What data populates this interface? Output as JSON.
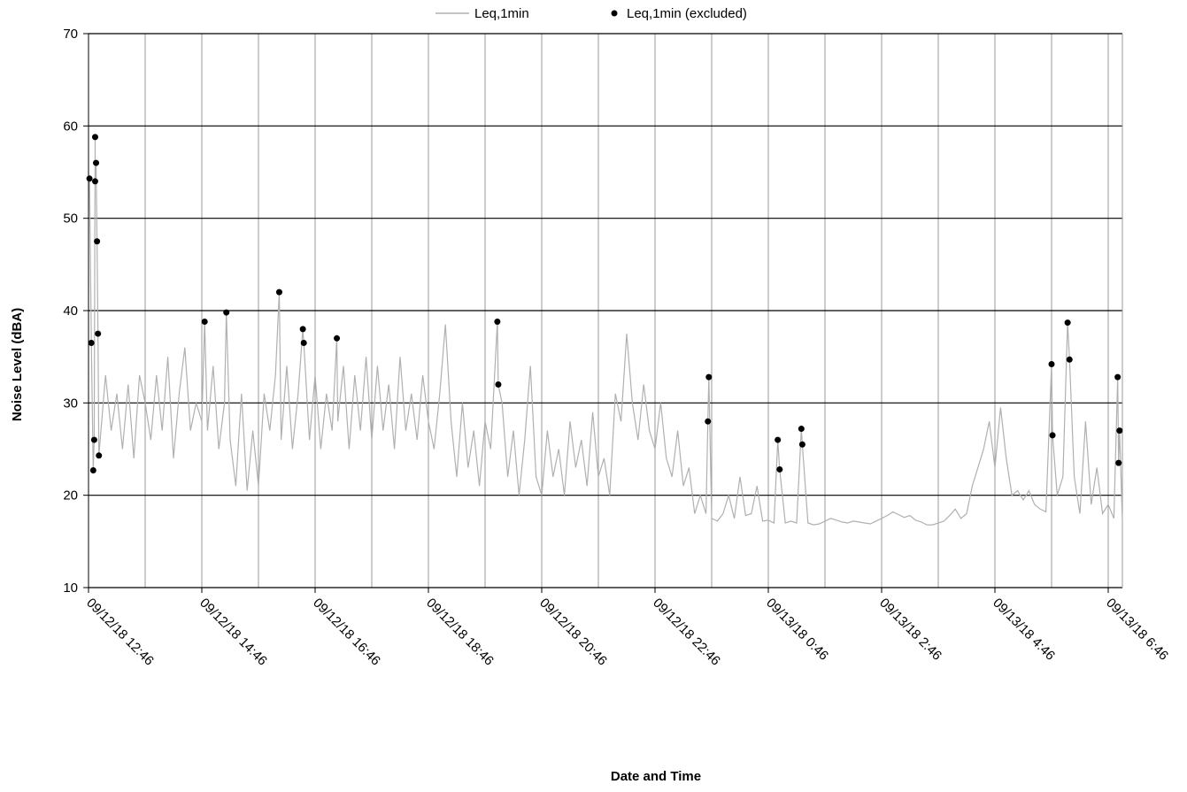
{
  "chart_data": {
    "type": "line",
    "ylabel": "Noise Level (dBA)",
    "xlabel": "Date and Time",
    "ylim": [
      10,
      70
    ],
    "yticks": [
      10,
      20,
      30,
      40,
      50,
      60,
      70
    ],
    "xlim": [
      "09/12/18 12:46",
      "09/13/18 7:01"
    ],
    "xticks": [
      "09/12/18 12:46",
      "09/12/18 14:46",
      "09/12/18 16:46",
      "09/12/18 18:46",
      "09/12/18 20:46",
      "09/12/18 22:46",
      "09/13/18 0:46",
      "09/13/18 2:46",
      "09/13/18 4:46",
      "09/13/18 6:46"
    ],
    "xgrid_minor": [
      "09/12/18 13:46",
      "09/12/18 15:46",
      "09/12/18 17:46",
      "09/12/18 19:46",
      "09/12/18 21:46",
      "09/12/18 23:46",
      "09/13/18 1:46",
      "09/13/18 3:46",
      "09/13/18 5:46"
    ],
    "grid": true,
    "legend": "top",
    "series": [
      {
        "name": "Leq,1min",
        "color": "#b0b0b0",
        "type": "line",
        "x": [
          "09/12/18 12:46",
          "09/12/18 12:47",
          "09/12/18 12:49",
          "09/12/18 12:51",
          "09/12/18 12:52",
          "09/12/18 12:53",
          "09/12/18 12:53",
          "09/12/18 12:54",
          "09/12/18 12:55",
          "09/12/18 12:56",
          "09/12/18 12:57",
          "09/12/18 13:04",
          "09/12/18 13:10",
          "09/12/18 13:16",
          "09/12/18 13:22",
          "09/12/18 13:28",
          "09/12/18 13:34",
          "09/12/18 13:40",
          "09/12/18 13:46",
          "09/12/18 13:52",
          "09/12/18 13:58",
          "09/12/18 14:04",
          "09/12/18 14:10",
          "09/12/18 14:16",
          "09/12/18 14:22",
          "09/12/18 14:28",
          "09/12/18 14:34",
          "09/12/18 14:40",
          "09/12/18 14:46",
          "09/12/18 14:49",
          "09/12/18 14:52",
          "09/12/18 14:58",
          "09/12/18 15:04",
          "09/12/18 15:10",
          "09/12/18 15:12",
          "09/12/18 15:16",
          "09/12/18 15:22",
          "09/12/18 15:28",
          "09/12/18 15:34",
          "09/12/18 15:40",
          "09/12/18 15:46",
          "09/12/18 15:52",
          "09/12/18 15:58",
          "09/12/18 16:04",
          "09/12/18 16:08",
          "09/12/18 16:10",
          "09/12/18 16:16",
          "09/12/18 16:22",
          "09/12/18 16:28",
          "09/12/18 16:33",
          "09/12/18 16:34",
          "09/12/18 16:40",
          "09/12/18 16:46",
          "09/12/18 16:52",
          "09/12/18 16:58",
          "09/12/18 17:04",
          "09/12/18 17:09",
          "09/12/18 17:10",
          "09/12/18 17:16",
          "09/12/18 17:22",
          "09/12/18 17:28",
          "09/12/18 17:34",
          "09/12/18 17:40",
          "09/12/18 17:46",
          "09/12/18 17:52",
          "09/12/18 17:58",
          "09/12/18 18:04",
          "09/12/18 18:10",
          "09/12/18 18:16",
          "09/12/18 18:22",
          "09/12/18 18:28",
          "09/12/18 18:34",
          "09/12/18 18:40",
          "09/12/18 18:46",
          "09/12/18 18:52",
          "09/12/18 18:58",
          "09/12/18 19:04",
          "09/12/18 19:10",
          "09/12/18 19:16",
          "09/12/18 19:22",
          "09/12/18 19:28",
          "09/12/18 19:34",
          "09/12/18 19:40",
          "09/12/18 19:46",
          "09/12/18 19:52",
          "09/12/18 19:59",
          "09/12/18 20:00",
          "09/12/18 20:04",
          "09/12/18 20:10",
          "09/12/18 20:16",
          "09/12/18 20:22",
          "09/12/18 20:28",
          "09/12/18 20:34",
          "09/12/18 20:40",
          "09/12/18 20:46",
          "09/12/18 20:52",
          "09/12/18 20:58",
          "09/12/18 21:04",
          "09/12/18 21:10",
          "09/12/18 21:16",
          "09/12/18 21:22",
          "09/12/18 21:28",
          "09/12/18 21:34",
          "09/12/18 21:40",
          "09/12/18 21:46",
          "09/12/18 21:52",
          "09/12/18 21:58",
          "09/12/18 22:04",
          "09/12/18 22:10",
          "09/12/18 22:16",
          "09/12/18 22:22",
          "09/12/18 22:28",
          "09/12/18 22:34",
          "09/12/18 22:40",
          "09/12/18 22:46",
          "09/12/18 22:52",
          "09/12/18 22:58",
          "09/12/18 23:04",
          "09/12/18 23:10",
          "09/12/18 23:16",
          "09/12/18 23:22",
          "09/12/18 23:28",
          "09/12/18 23:34",
          "09/12/18 23:40",
          "09/12/18 23:42",
          "09/12/18 23:43",
          "09/12/18 23:46",
          "09/12/18 23:52",
          "09/12/18 23:58",
          "09/13/18 0:04",
          "09/13/18 0:10",
          "09/13/18 0:16",
          "09/13/18 0:22",
          "09/13/18 0:28",
          "09/13/18 0:34",
          "09/13/18 0:40",
          "09/13/18 0:46",
          "09/13/18 0:52",
          "09/13/18 0:56",
          "09/13/18 0:58",
          "09/13/18 1:04",
          "09/13/18 1:10",
          "09/13/18 1:16",
          "09/13/18 1:21",
          "09/13/18 1:22",
          "09/13/18 1:28",
          "09/13/18 1:34",
          "09/13/18 1:40",
          "09/13/18 1:46",
          "09/13/18 1:52",
          "09/13/18 1:58",
          "09/13/18 2:04",
          "09/13/18 2:10",
          "09/13/18 2:16",
          "09/13/18 2:22",
          "09/13/18 2:28",
          "09/13/18 2:34",
          "09/13/18 2:40",
          "09/13/18 2:46",
          "09/13/18 2:52",
          "09/13/18 2:58",
          "09/13/18 3:04",
          "09/13/18 3:10",
          "09/13/18 3:16",
          "09/13/18 3:22",
          "09/13/18 3:28",
          "09/13/18 3:34",
          "09/13/18 3:40",
          "09/13/18 3:46",
          "09/13/18 3:52",
          "09/13/18 3:58",
          "09/13/18 4:04",
          "09/13/18 4:10",
          "09/13/18 4:16",
          "09/13/18 4:22",
          "09/13/18 4:28",
          "09/13/18 4:34",
          "09/13/18 4:40",
          "09/13/18 4:46",
          "09/13/18 4:52",
          "09/13/18 4:58",
          "09/13/18 5:04",
          "09/13/18 5:10",
          "09/13/18 5:16",
          "09/13/18 5:22",
          "09/13/18 5:28",
          "09/13/18 5:34",
          "09/13/18 5:40",
          "09/13/18 5:46",
          "09/13/18 5:47",
          "09/13/18 5:52",
          "09/13/18 5:58",
          "09/13/18 6:03",
          "09/13/18 6:05",
          "09/13/18 6:10",
          "09/13/18 6:16",
          "09/13/18 6:22",
          "09/13/18 6:28",
          "09/13/18 6:34",
          "09/13/18 6:40",
          "09/13/18 6:46",
          "09/13/18 6:52",
          "09/13/18 6:56",
          "09/13/18 6:57",
          "09/13/18 6:58",
          "09/13/18 7:01"
        ],
        "values": [
          54,
          54.3,
          36.5,
          22.7,
          26,
          58.8,
          54,
          56,
          47.5,
          37.5,
          24.3,
          33,
          27,
          31,
          25,
          32,
          24,
          33,
          30,
          26,
          33,
          27,
          35,
          24,
          31,
          36,
          27,
          30,
          28,
          38.8,
          27,
          34,
          25,
          30,
          39.8,
          26,
          21,
          31,
          20.5,
          27,
          21,
          31,
          27,
          33,
          42,
          26,
          34,
          25,
          31,
          38,
          36.5,
          26,
          33,
          25,
          31,
          27,
          37,
          28,
          34,
          25,
          33,
          27,
          35,
          26,
          34,
          27,
          32,
          25,
          35,
          27,
          31,
          26,
          33,
          28,
          25,
          31,
          38.5,
          28,
          22,
          30,
          23,
          27,
          21,
          28,
          25,
          38.8,
          32,
          30,
          22,
          27,
          20,
          26,
          34,
          22,
          20,
          27,
          22,
          25,
          20,
          28,
          23,
          26,
          21,
          29,
          22,
          24,
          20,
          31,
          28,
          37.5,
          30,
          26,
          32,
          27,
          25,
          30,
          24,
          22,
          27,
          21,
          23,
          18,
          20,
          18,
          28,
          32.8,
          17.5,
          17.2,
          18,
          20,
          17.5,
          22,
          17.8,
          18,
          21,
          17.2,
          17.3,
          17,
          26,
          22.8,
          17,
          17.2,
          17,
          27.2,
          25.5,
          17,
          16.8,
          16.9,
          17.2,
          17.5,
          17.3,
          17.1,
          17,
          17.2,
          17.1,
          17,
          16.9,
          17.2,
          17.5,
          17.8,
          18.2,
          17.9,
          17.6,
          17.8,
          17.3,
          17.1,
          16.8,
          16.8,
          17,
          17.2,
          17.8,
          18.5,
          17.5,
          18,
          21,
          23,
          25,
          28,
          23,
          29.5,
          24,
          20,
          20.5,
          19.5,
          20.5,
          19,
          18.5,
          18.2,
          34.2,
          26.5,
          20,
          22,
          38.7,
          34.7,
          22,
          18,
          28,
          19,
          23,
          18,
          19,
          17.5,
          32.8,
          23.5,
          27,
          17.2
        ]
      },
      {
        "name": "Leq,1min (excluded)",
        "color": "#000000",
        "type": "scatter",
        "x": [
          "09/12/18 12:47",
          "09/12/18 12:49",
          "09/12/18 12:51",
          "09/12/18 12:52",
          "09/12/18 12:53",
          "09/12/18 12:53",
          "09/12/18 12:54",
          "09/12/18 12:55",
          "09/12/18 12:56",
          "09/12/18 12:57",
          "09/12/18 14:49",
          "09/12/18 15:12",
          "09/12/18 16:08",
          "09/12/18 16:33",
          "09/12/18 16:34",
          "09/12/18 17:09",
          "09/12/18 19:59",
          "09/12/18 20:00",
          "09/12/18 23:42",
          "09/12/18 23:43",
          "09/13/18 0:56",
          "09/13/18 0:58",
          "09/13/18 1:21",
          "09/13/18 1:22",
          "09/13/18 5:46",
          "09/13/18 5:47",
          "09/13/18 6:03",
          "09/13/18 6:05",
          "09/13/18 6:56",
          "09/13/18 6:57",
          "09/13/18 6:58"
        ],
        "values": [
          54.3,
          36.5,
          22.7,
          26,
          58.8,
          54,
          56,
          47.5,
          37.5,
          24.3,
          38.8,
          39.8,
          42,
          38,
          36.5,
          37,
          38.8,
          32,
          28,
          32.8,
          26,
          22.8,
          27.2,
          25.5,
          34.2,
          26.5,
          38.7,
          34.7,
          32.8,
          23.5,
          27
        ]
      }
    ]
  }
}
